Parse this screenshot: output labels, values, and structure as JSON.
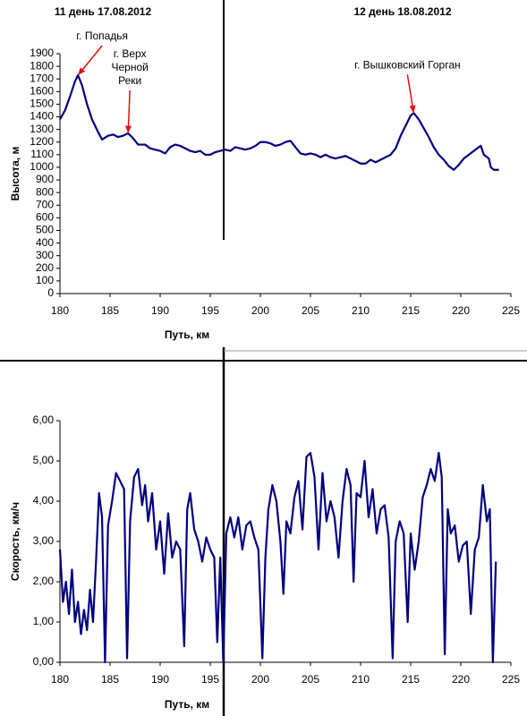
{
  "headers": [
    "11 день 17.08.2012",
    "12 день  18.08.2012"
  ],
  "chart_data": [
    {
      "type": "line",
      "ylabel": "Высота, м",
      "xlabel": "Путь, км",
      "xlim": [
        180,
        225
      ],
      "xticks": [
        180,
        185,
        190,
        195,
        200,
        205,
        210,
        215,
        220,
        225
      ],
      "ylim": [
        0,
        1900
      ],
      "yticks": [
        0,
        100,
        200,
        300,
        400,
        500,
        600,
        700,
        800,
        900,
        1000,
        1100,
        1200,
        1300,
        1400,
        1500,
        1600,
        1700,
        1800,
        1900
      ],
      "grid": false,
      "annotations": [
        {
          "lines": [
            "г. Попадья"
          ],
          "x": 181.8,
          "y": 1730
        },
        {
          "lines": [
            "г. Верх",
            "Черной",
            "Реки"
          ],
          "x": 186.8,
          "y": 1270
        },
        {
          "lines": [
            "г. Вышковский Горган"
          ],
          "x": 215.3,
          "y": 1430
        }
      ],
      "annotation_color": "#e01010",
      "series": [
        {
          "color": "#000080",
          "x": [
            180,
            180.5,
            181,
            181.5,
            181.8,
            182.2,
            182.7,
            183.2,
            183.8,
            184.2,
            184.8,
            185.3,
            185.8,
            186.3,
            186.8,
            187.3,
            187.8,
            188.5,
            189,
            189.5,
            190,
            190.5,
            191,
            191.5,
            192,
            192.5,
            193,
            193.5,
            194,
            194.5,
            195,
            195.5,
            196,
            196.5,
            197,
            197.5,
            198,
            198.5,
            199,
            199.5,
            200,
            200.5,
            201,
            201.5,
            202,
            202.5,
            203,
            203.5,
            204,
            204.5,
            205,
            205.5,
            206,
            206.5,
            207,
            207.5,
            208,
            208.5,
            209,
            209.5,
            210,
            210.5,
            211,
            211.5,
            212,
            212.5,
            213,
            213.5,
            214,
            214.5,
            215,
            215.3,
            215.8,
            216.3,
            216.8,
            217.3,
            217.8,
            218.3,
            218.8,
            219.3,
            219.8,
            220.3,
            220.8,
            221.3,
            221.8,
            222,
            222.3,
            222.8,
            223,
            223.3,
            223.8
          ],
          "values": [
            1380,
            1450,
            1560,
            1680,
            1730,
            1650,
            1500,
            1380,
            1280,
            1220,
            1250,
            1260,
            1240,
            1250,
            1270,
            1230,
            1180,
            1180,
            1150,
            1140,
            1130,
            1110,
            1160,
            1180,
            1170,
            1150,
            1130,
            1120,
            1130,
            1100,
            1100,
            1120,
            1130,
            1140,
            1130,
            1160,
            1150,
            1140,
            1150,
            1170,
            1200,
            1200,
            1190,
            1170,
            1180,
            1200,
            1210,
            1160,
            1110,
            1100,
            1110,
            1100,
            1080,
            1100,
            1080,
            1070,
            1080,
            1090,
            1070,
            1050,
            1030,
            1030,
            1060,
            1040,
            1060,
            1080,
            1100,
            1150,
            1250,
            1330,
            1410,
            1430,
            1380,
            1310,
            1240,
            1160,
            1100,
            1060,
            1010,
            980,
            1020,
            1070,
            1100,
            1130,
            1160,
            1170,
            1100,
            1070,
            1000,
            980,
            980
          ]
        }
      ]
    },
    {
      "type": "line",
      "ylabel": "Скорость, км/ч",
      "xlabel": "Путь, км",
      "xlim": [
        180,
        225
      ],
      "xticks": [
        180,
        185,
        190,
        195,
        200,
        205,
        210,
        215,
        220,
        225
      ],
      "ylim": [
        0,
        6
      ],
      "yticks": [
        {
          "value": 0,
          "label": "0,00"
        },
        {
          "value": 1,
          "label": "1,00"
        },
        {
          "value": 2,
          "label": "2,00"
        },
        {
          "value": 3,
          "label": "3,00"
        },
        {
          "value": 4,
          "label": "4,00"
        },
        {
          "value": 5,
          "label": "5,00"
        },
        {
          "value": 6,
          "label": "6,00"
        }
      ],
      "grid": false,
      "series": [
        {
          "color": "#000080",
          "x": [
            180,
            180.3,
            180.6,
            180.9,
            181.2,
            181.5,
            181.8,
            182.1,
            182.4,
            182.7,
            183,
            183.3,
            183.6,
            183.9,
            184.2,
            184.5,
            184.8,
            185.2,
            185.6,
            186,
            186.4,
            186.7,
            187,
            187.4,
            187.8,
            188.2,
            188.5,
            188.8,
            189.2,
            189.6,
            190,
            190.4,
            190.8,
            191.2,
            191.6,
            192,
            192.4,
            192.7,
            193,
            193.4,
            193.8,
            194.2,
            194.6,
            195,
            195.4,
            195.7,
            196,
            196.3,
            196.6,
            197,
            197.4,
            197.8,
            198.2,
            198.6,
            199,
            199.4,
            199.8,
            200.2,
            200.5,
            200.8,
            201.2,
            201.6,
            202,
            202.3,
            202.6,
            203,
            203.4,
            203.8,
            204.2,
            204.6,
            205,
            205.4,
            205.8,
            206.2,
            206.6,
            207,
            207.4,
            207.8,
            208.2,
            208.6,
            209,
            209.3,
            209.6,
            210,
            210.4,
            210.8,
            211.2,
            211.6,
            212,
            212.4,
            212.8,
            213.2,
            213.5,
            213.9,
            214.3,
            214.7,
            215,
            215.4,
            215.8,
            216.2,
            216.6,
            217,
            217.4,
            217.8,
            218.1,
            218.4,
            218.7,
            219,
            219.4,
            219.8,
            220.2,
            220.6,
            221,
            221.4,
            221.8,
            222.2,
            222.6,
            222.9,
            223.2,
            223.5
          ],
          "values": [
            2.8,
            1.5,
            2.0,
            1.2,
            2.3,
            1.0,
            1.5,
            0.7,
            1.3,
            0.8,
            1.8,
            1.0,
            2.5,
            4.2,
            3.6,
            0.0,
            3.4,
            4.0,
            4.7,
            4.5,
            4.3,
            0.1,
            3.5,
            4.6,
            4.8,
            3.9,
            4.4,
            3.5,
            4.2,
            2.8,
            3.5,
            2.2,
            3.7,
            2.6,
            3.0,
            2.8,
            0.4,
            3.8,
            4.2,
            3.3,
            3.0,
            2.5,
            3.1,
            2.8,
            2.6,
            0.5,
            2.6,
            0.0,
            3.2,
            3.6,
            3.1,
            3.6,
            2.8,
            3.4,
            3.5,
            3.1,
            2.8,
            0.1,
            2.6,
            3.8,
            4.4,
            4.0,
            3.0,
            1.7,
            3.5,
            3.2,
            4.1,
            4.5,
            3.3,
            5.1,
            5.2,
            4.6,
            2.8,
            4.7,
            3.5,
            4.0,
            3.6,
            2.6,
            4.0,
            4.8,
            4.4,
            2.0,
            4.2,
            4.1,
            5.0,
            3.6,
            4.3,
            3.2,
            3.8,
            3.9,
            3.1,
            0.1,
            3.0,
            3.5,
            3.2,
            1.0,
            3.2,
            2.3,
            3.0,
            4.1,
            4.4,
            4.8,
            4.5,
            5.2,
            4.6,
            0.2,
            3.8,
            3.2,
            3.4,
            2.5,
            2.9,
            3.0,
            1.2,
            2.8,
            3.1,
            4.4,
            3.5,
            3.8,
            0.0,
            2.5
          ]
        }
      ]
    }
  ]
}
